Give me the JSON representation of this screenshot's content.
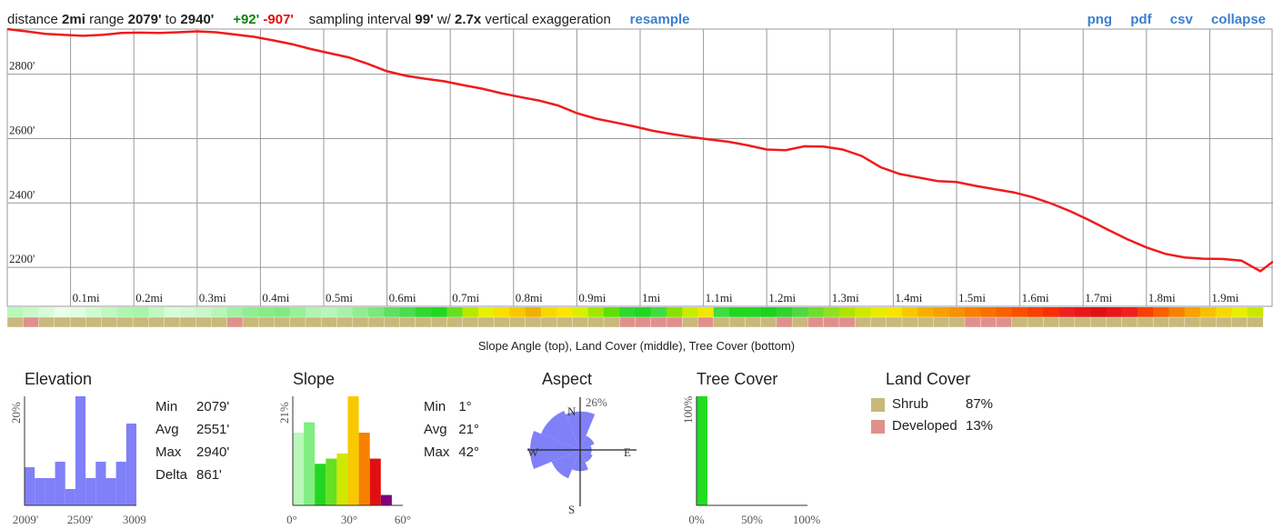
{
  "header": {
    "distance_label": "distance",
    "distance_value": "2mi",
    "range_label": "range",
    "range_min": "2079'",
    "range_to": "to",
    "range_max": "2940'",
    "gain": "+92'",
    "loss": "-907'",
    "sampling_label": "sampling interval",
    "sampling_value": "99'",
    "with_label": "w/",
    "exaggeration_value": "2.7x",
    "exaggeration_label": "vertical exaggeration",
    "resample": "resample",
    "png": "png",
    "pdf": "pdf",
    "csv": "csv",
    "collapse": "collapse"
  },
  "colors": {
    "profile_line": "#ee1c1c",
    "grid": "#999999",
    "histogram": "#8080f8",
    "shrub": "#c8b87a",
    "developed": "#e0908c",
    "tree_cover": "#22dd22",
    "link": "#3a80d0"
  },
  "chart_data": [
    {
      "type": "line",
      "name": "elevation-profile",
      "x_unit": "mi",
      "xlim": [
        0,
        2
      ],
      "ylim": [
        2079,
        2940
      ],
      "x_ticks": [
        "0.1mi",
        "0.2mi",
        "0.3mi",
        "0.4mi",
        "0.5mi",
        "0.6mi",
        "0.7mi",
        "0.8mi",
        "0.9mi",
        "1mi",
        "1.1mi",
        "1.2mi",
        "1.3mi",
        "1.4mi",
        "1.5mi",
        "1.6mi",
        "1.7mi",
        "1.8mi",
        "1.9mi"
      ],
      "y_ticks": [
        {
          "value": 2800,
          "label": "2800'"
        },
        {
          "value": 2600,
          "label": "2600'"
        },
        {
          "value": 2400,
          "label": "2400'"
        },
        {
          "value": 2200,
          "label": "2200'"
        }
      ],
      "grid": true,
      "x": [
        0,
        0.03,
        0.06,
        0.09,
        0.12,
        0.15,
        0.18,
        0.21,
        0.24,
        0.27,
        0.3,
        0.33,
        0.36,
        0.39,
        0.42,
        0.45,
        0.48,
        0.51,
        0.54,
        0.57,
        0.6,
        0.63,
        0.66,
        0.69,
        0.72,
        0.75,
        0.78,
        0.81,
        0.84,
        0.87,
        0.9,
        0.93,
        0.96,
        0.99,
        1.02,
        1.05,
        1.08,
        1.11,
        1.14,
        1.17,
        1.2,
        1.23,
        1.26,
        1.29,
        1.32,
        1.35,
        1.38,
        1.41,
        1.44,
        1.47,
        1.5,
        1.53,
        1.56,
        1.59,
        1.62,
        1.65,
        1.68,
        1.71,
        1.74,
        1.77,
        1.8,
        1.83,
        1.86,
        1.89,
        1.92,
        1.95,
        1.98,
        2.0
      ],
      "y": [
        2940,
        2933,
        2925,
        2922,
        2919,
        2922,
        2928,
        2929,
        2928,
        2930,
        2933,
        2930,
        2923,
        2916,
        2905,
        2893,
        2878,
        2865,
        2852,
        2832,
        2809,
        2795,
        2786,
        2778,
        2766,
        2755,
        2741,
        2729,
        2718,
        2703,
        2679,
        2662,
        2650,
        2638,
        2624,
        2614,
        2605,
        2597,
        2590,
        2579,
        2566,
        2564,
        2576,
        2575,
        2566,
        2546,
        2511,
        2490,
        2479,
        2468,
        2465,
        2453,
        2443,
        2433,
        2418,
        2398,
        2374,
        2346,
        2316,
        2287,
        2262,
        2242,
        2231,
        2227,
        2226,
        2221,
        2188,
        2218
      ]
    },
    {
      "type": "heatmap",
      "name": "slope-landcover-treecover-strips",
      "slope_colors_per_segment": [
        "#b8f8b8",
        "#c8fac8",
        "#d8fcd8",
        "#e8ffe8",
        "#e0fde0",
        "#d0fbd0",
        "#c0f8c0",
        "#b0f6b0",
        "#a8f4a8",
        "#c0f8c0",
        "#d8fcd8",
        "#d0fad0",
        "#c8f8c8",
        "#b8f6b8",
        "#a0f2a0",
        "#90ee90",
        "#88ec88",
        "#80ea80",
        "#98f098",
        "#b0f4b0",
        "#b8f6b8",
        "#a8f2a8",
        "#90ee90",
        "#7ce87c",
        "#60e060",
        "#4cdc4c",
        "#30d830",
        "#22d622",
        "#66e022",
        "#b8e800",
        "#e8f000",
        "#f8e000",
        "#f8c800",
        "#f0b000",
        "#f8d800",
        "#ffe400",
        "#d8f000",
        "#a0e800",
        "#60e000",
        "#30d830",
        "#22d622",
        "#40dc40",
        "#88e000",
        "#c8ec00",
        "#f0e800",
        "#40dc40",
        "#22d622",
        "#22d622",
        "#20d020",
        "#30d430",
        "#50d840",
        "#70dc30",
        "#90e020",
        "#b0e400",
        "#d0e800",
        "#e8ec00",
        "#f8e400",
        "#f8c800",
        "#f8b000",
        "#f8a000",
        "#f89000",
        "#f88000",
        "#f87000",
        "#f86000",
        "#f85000",
        "#f84000",
        "#f83000",
        "#f02020",
        "#e81818",
        "#e01010",
        "#e81818",
        "#f02020",
        "#f84000",
        "#f86000",
        "#f88000",
        "#f8a000",
        "#f8c000",
        "#f8d800",
        "#e8f000",
        "#c8e800"
      ],
      "landcover_colors_per_segment": [
        "#c8b87a",
        "#e0908c",
        "#c8b87a",
        "#c8b87a",
        "#c8b87a",
        "#c8b87a",
        "#c8b87a",
        "#c8b87a",
        "#c8b87a",
        "#c8b87a",
        "#c8b87a",
        "#c8b87a",
        "#c8b87a",
        "#c8b87a",
        "#e0908c",
        "#c8b87a",
        "#c8b87a",
        "#c8b87a",
        "#c8b87a",
        "#c8b87a",
        "#c8b87a",
        "#c8b87a",
        "#c8b87a",
        "#c8b87a",
        "#c8b87a",
        "#c8b87a",
        "#c8b87a",
        "#c8b87a",
        "#c8b87a",
        "#c8b87a",
        "#c8b87a",
        "#c8b87a",
        "#c8b87a",
        "#c8b87a",
        "#c8b87a",
        "#c8b87a",
        "#c8b87a",
        "#c8b87a",
        "#c8b87a",
        "#e0908c",
        "#e0908c",
        "#e0908c",
        "#e0908c",
        "#c8b87a",
        "#e0908c",
        "#c8b87a",
        "#c8b87a",
        "#c8b87a",
        "#c8b87a",
        "#e0908c",
        "#c8b87a",
        "#e0908c",
        "#e0908c",
        "#e0908c",
        "#c8b87a",
        "#c8b87a",
        "#c8b87a",
        "#c8b87a",
        "#c8b87a",
        "#c8b87a",
        "#c8b87a",
        "#e0908c",
        "#e0908c",
        "#e0908c",
        "#c8b87a",
        "#c8b87a",
        "#c8b87a",
        "#c8b87a",
        "#c8b87a",
        "#c8b87a",
        "#c8b87a",
        "#c8b87a",
        "#c8b87a",
        "#c8b87a",
        "#c8b87a",
        "#c8b87a",
        "#c8b87a",
        "#c8b87a",
        "#c8b87a",
        "#c8b87a"
      ],
      "caption": "Slope Angle (top), Land Cover (middle), Tree Cover (bottom)"
    },
    {
      "type": "bar",
      "name": "elevation-histogram",
      "title": "Elevation",
      "x_ticks": [
        "2009'",
        "2509'",
        "3009'"
      ],
      "y_label": "20%",
      "values": [
        7,
        5,
        5,
        8,
        3,
        20,
        5,
        8,
        5,
        8,
        15
      ],
      "ylim": [
        0,
        20
      ],
      "stats": [
        {
          "label": "Min",
          "value": "2079'"
        },
        {
          "label": "Avg",
          "value": "2551'"
        },
        {
          "label": "Max",
          "value": "2940'"
        },
        {
          "label": "Delta",
          "value": "861'"
        }
      ]
    },
    {
      "type": "bar",
      "name": "slope-histogram",
      "title": "Slope",
      "x_ticks": [
        "0°",
        "30°",
        "60°"
      ],
      "y_label": "21%",
      "values": [
        14,
        16,
        8,
        9,
        10,
        21,
        14,
        9,
        2,
        0
      ],
      "bar_colors": [
        "#b8f8b8",
        "#80ee80",
        "#22d622",
        "#66e022",
        "#d0e800",
        "#f8c800",
        "#f88000",
        "#e01010",
        "#800080",
        "#ffffff"
      ],
      "ylim": [
        0,
        21
      ],
      "stats": [
        {
          "label": "Min",
          "value": "1°"
        },
        {
          "label": "Avg",
          "value": "21°"
        },
        {
          "label": "Max",
          "value": "42°"
        }
      ]
    },
    {
      "type": "pie",
      "name": "aspect-rose",
      "title": "Aspect",
      "directions": [
        "N",
        "E",
        "S",
        "W"
      ],
      "max_label": "26%",
      "sectors": [
        20,
        8,
        6,
        7,
        11,
        16,
        26,
        22
      ],
      "ylim": [
        0,
        26
      ]
    },
    {
      "type": "bar",
      "name": "tree-cover-histogram",
      "title": "Tree Cover",
      "x_ticks": [
        "0%",
        "50%",
        "100%"
      ],
      "y_label": "100%",
      "values": [
        100
      ],
      "ylim": [
        0,
        100
      ]
    }
  ],
  "landcover": {
    "title": "Land Cover",
    "items": [
      {
        "label": "Shrub",
        "value": "87%",
        "color": "#c8b87a"
      },
      {
        "label": "Developed",
        "value": "13%",
        "color": "#e0908c"
      }
    ]
  }
}
